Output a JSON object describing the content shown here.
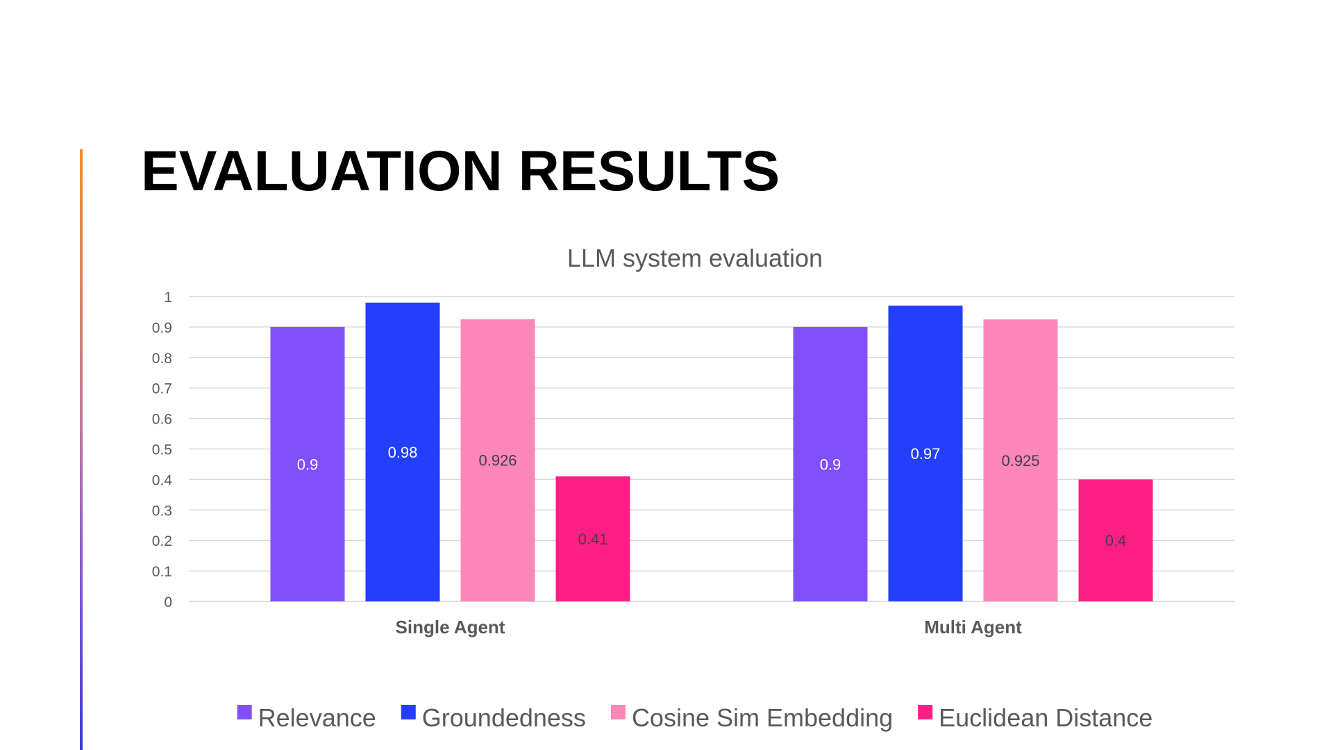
{
  "slide": {
    "title": "EVALUATION RESULTS"
  },
  "chart_data": {
    "type": "bar",
    "title": "LLM system evaluation",
    "categories": [
      "Single Agent",
      "Multi Agent"
    ],
    "series": [
      {
        "name": "Relevance",
        "color": "#8250fa",
        "values": [
          0.9,
          0.9
        ],
        "labels": [
          "0.9",
          "0.9"
        ],
        "label_color": "#ffffff"
      },
      {
        "name": "Groundedness",
        "color": "#233ffb",
        "values": [
          0.98,
          0.97
        ],
        "labels": [
          "0.98",
          "0.97"
        ],
        "label_color": "#ffffff"
      },
      {
        "name": "Cosine Sim Embedding",
        "color": "#fe86b8",
        "values": [
          0.926,
          0.925
        ],
        "labels": [
          "0.926",
          "0.925"
        ],
        "label_color": "#404040"
      },
      {
        "name": "Euclidean Distance",
        "color": "#fe1f86",
        "values": [
          0.41,
          0.4
        ],
        "labels": [
          "0.41",
          "0.4"
        ],
        "label_color": "#404040"
      }
    ],
    "yticks": [
      "0",
      "0.1",
      "0.2",
      "0.3",
      "0.4",
      "0.5",
      "0.6",
      "0.7",
      "0.8",
      "0.9",
      "1"
    ],
    "ylim": [
      0,
      1
    ],
    "xlabel": "",
    "ylabel": "",
    "grid": true,
    "legend_position": "bottom"
  }
}
